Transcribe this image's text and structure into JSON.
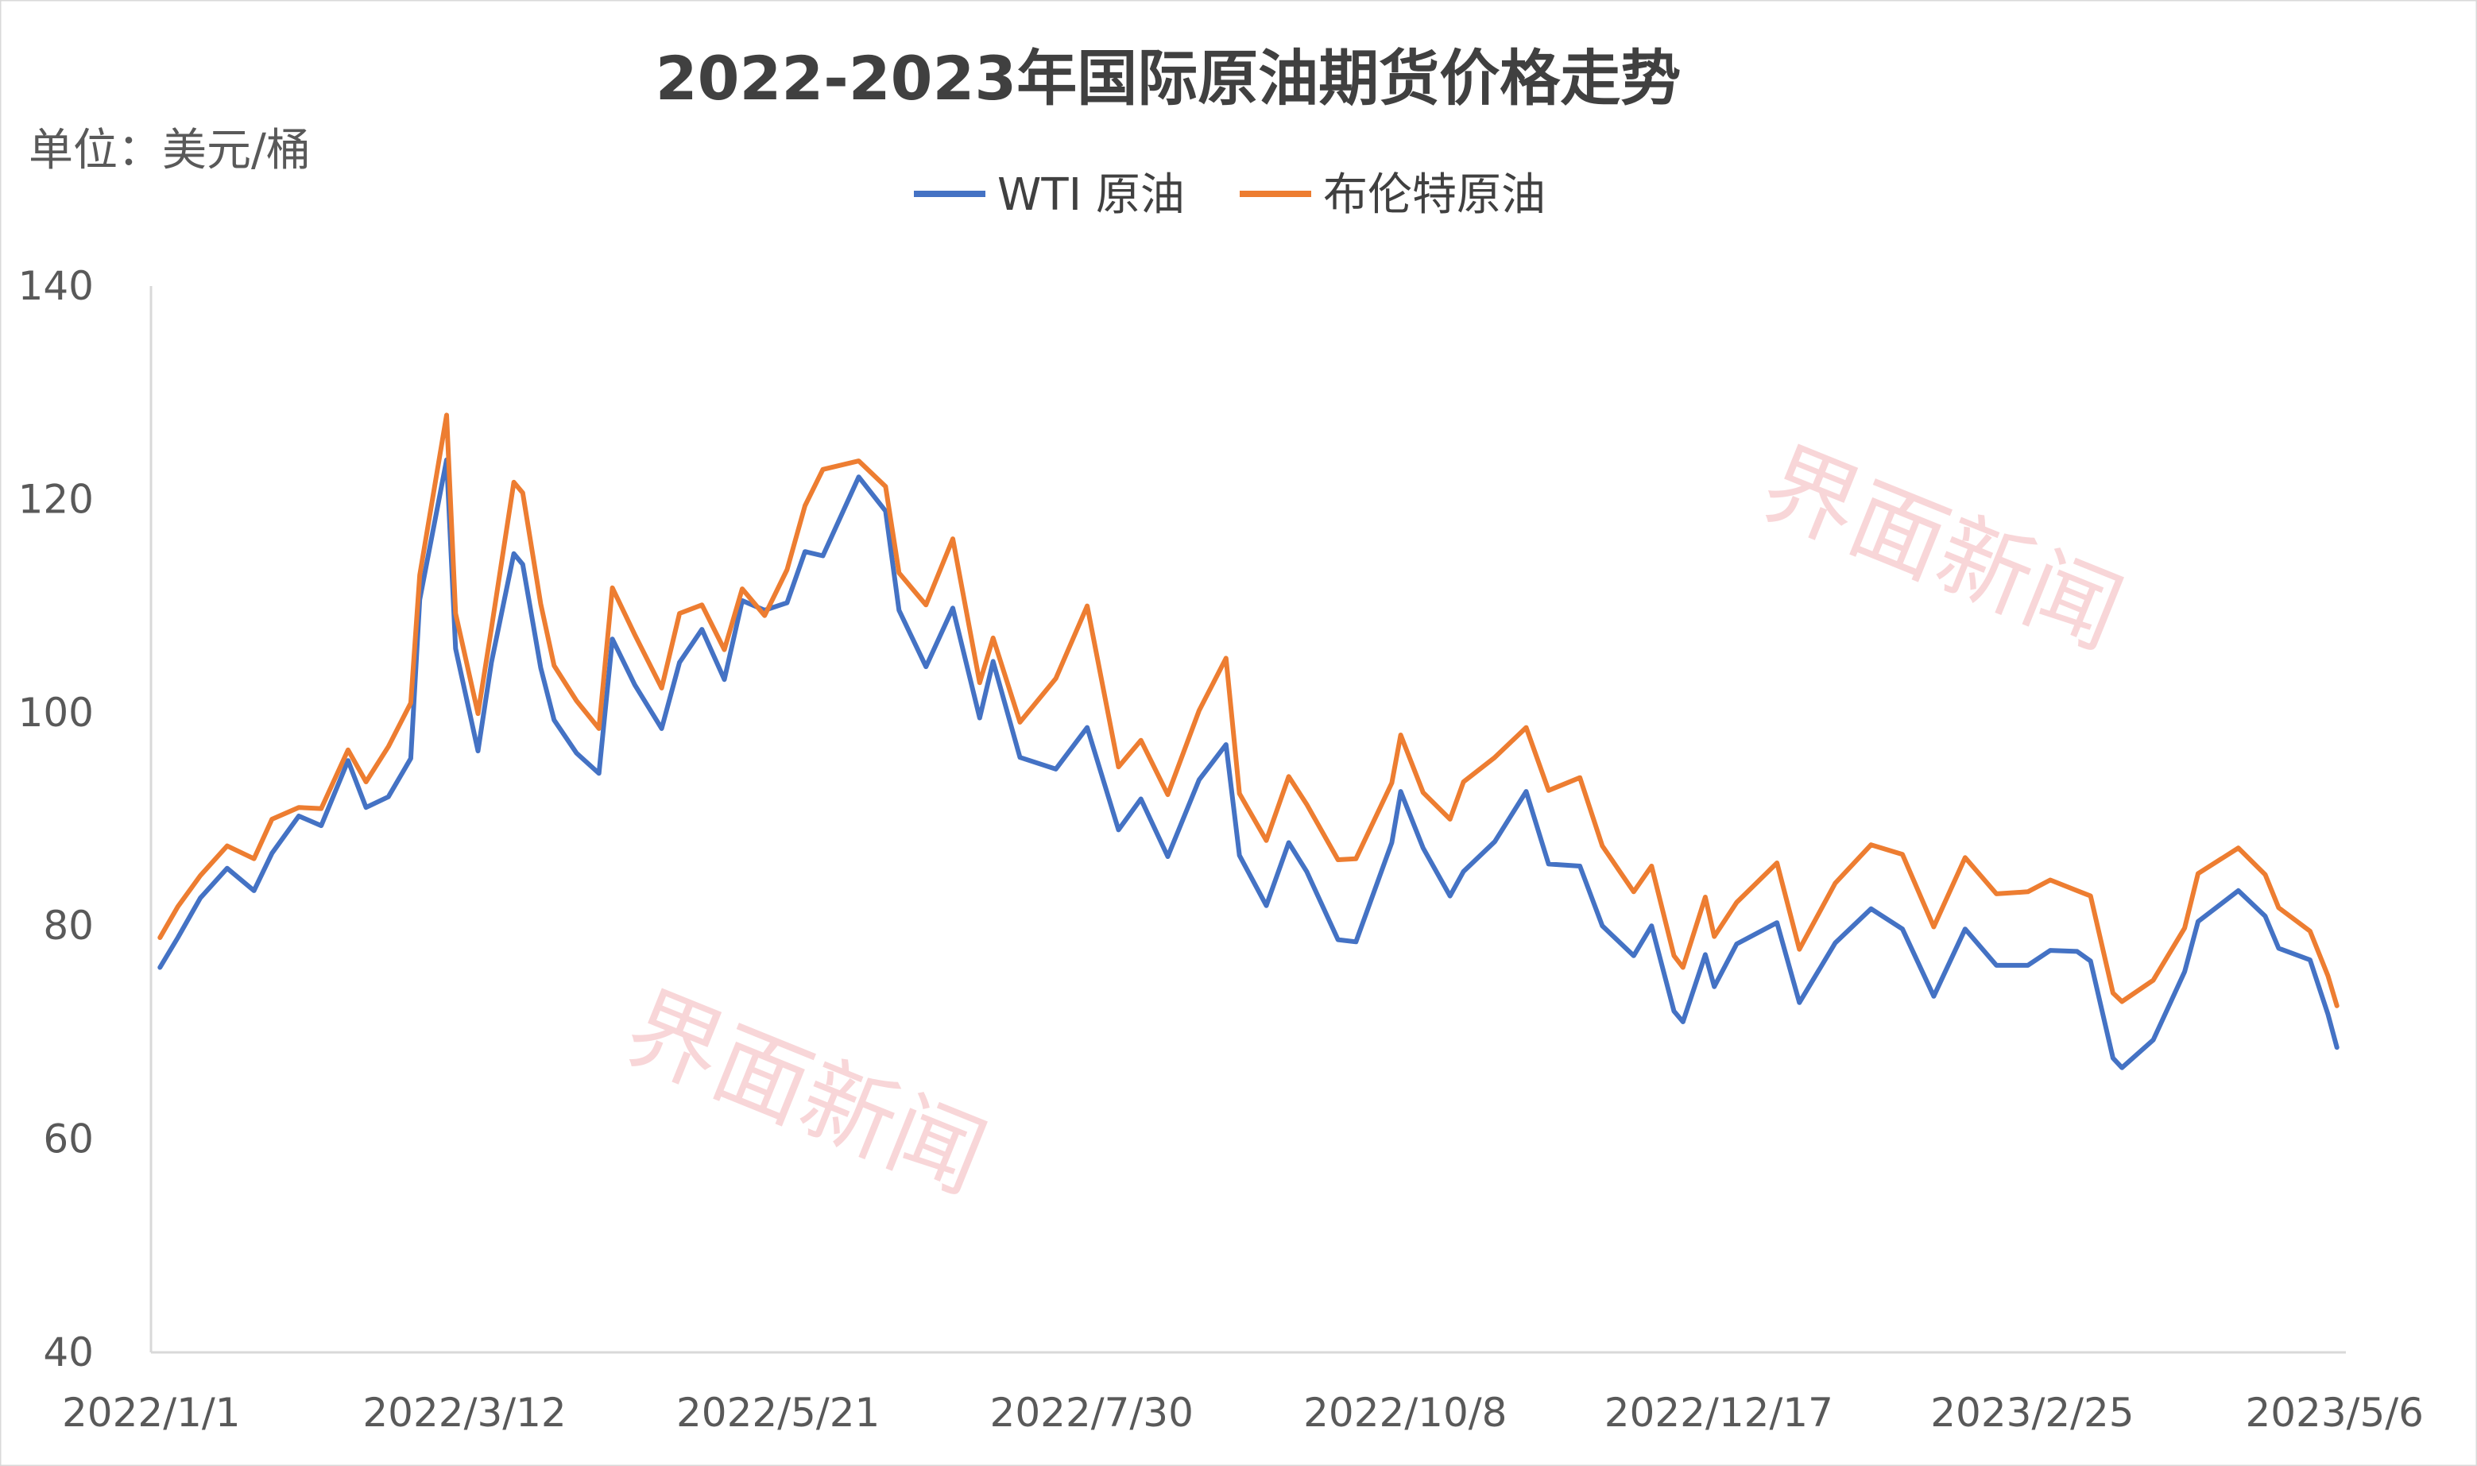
{
  "chart_data": {
    "type": "line",
    "title": "2022-2023年国际原油期货价格走势",
    "unit_label": "单位：美元/桶",
    "ylim": [
      40,
      140
    ],
    "yticks": [
      "40",
      "60",
      "80",
      "100",
      "120",
      "140"
    ],
    "xticks": [
      "2022/1/1",
      "2022/3/12",
      "2022/5/21",
      "2022/7/30",
      "2022/10/8",
      "2022/12/17",
      "2023/2/25",
      "2023/5/6"
    ],
    "x_range": [
      "2022/1/1",
      "2023/5/6"
    ],
    "grid": false,
    "legend_position": "top",
    "watermarks": [
      "界面新闻",
      "界面新闻"
    ],
    "series": [
      {
        "name": "WTI 原油",
        "color": "#4472C4",
        "points": [
          [
            "2022/1/3",
            76.1
          ],
          [
            "2022/1/7",
            78.9
          ],
          [
            "2022/1/12",
            82.6
          ],
          [
            "2022/1/18",
            85.4
          ],
          [
            "2022/1/24",
            83.3
          ],
          [
            "2022/1/28",
            86.8
          ],
          [
            "2022/2/3",
            90.3
          ],
          [
            "2022/2/8",
            89.4
          ],
          [
            "2022/2/14",
            95.5
          ],
          [
            "2022/2/18",
            91.1
          ],
          [
            "2022/2/23",
            92.1
          ],
          [
            "2022/2/28",
            95.7
          ],
          [
            "2022/3/2",
            110.6
          ],
          [
            "2022/3/8",
            123.7
          ],
          [
            "2022/3/10",
            106.0
          ],
          [
            "2022/3/15",
            96.4
          ],
          [
            "2022/3/18",
            104.7
          ],
          [
            "2022/3/23",
            114.9
          ],
          [
            "2022/3/25",
            113.9
          ],
          [
            "2022/3/29",
            104.2
          ],
          [
            "2022/4/1",
            99.3
          ],
          [
            "2022/4/6",
            96.2
          ],
          [
            "2022/4/11",
            94.3
          ],
          [
            "2022/4/14",
            106.9
          ],
          [
            "2022/4/19",
            102.6
          ],
          [
            "2022/4/25",
            98.5
          ],
          [
            "2022/4/29",
            104.7
          ],
          [
            "2022/5/4",
            107.8
          ],
          [
            "2022/5/9",
            103.1
          ],
          [
            "2022/5/13",
            110.5
          ],
          [
            "2022/5/18",
            109.6
          ],
          [
            "2022/5/23",
            110.3
          ],
          [
            "2022/5/27",
            115.1
          ],
          [
            "2022/5/31",
            114.7
          ],
          [
            "2022/6/8",
            122.1
          ],
          [
            "2022/6/14",
            118.9
          ],
          [
            "2022/6/17",
            109.6
          ],
          [
            "2022/6/23",
            104.3
          ],
          [
            "2022/6/29",
            109.8
          ],
          [
            "2022/7/5",
            99.5
          ],
          [
            "2022/7/8",
            104.8
          ],
          [
            "2022/7/14",
            95.8
          ],
          [
            "2022/7/22",
            94.7
          ],
          [
            "2022/7/29",
            98.6
          ],
          [
            "2022/8/5",
            89.0
          ],
          [
            "2022/8/10",
            91.9
          ],
          [
            "2022/8/16",
            86.5
          ],
          [
            "2022/8/23",
            93.7
          ],
          [
            "2022/8/29",
            97.0
          ],
          [
            "2022/9/1",
            86.6
          ],
          [
            "2022/9/7",
            81.9
          ],
          [
            "2022/9/12",
            87.8
          ],
          [
            "2022/9/16",
            85.1
          ],
          [
            "2022/9/23",
            78.7
          ],
          [
            "2022/9/27",
            78.5
          ],
          [
            "2022/10/5",
            87.8
          ],
          [
            "2022/10/7",
            92.6
          ],
          [
            "2022/10/12",
            87.3
          ],
          [
            "2022/10/18",
            82.8
          ],
          [
            "2022/10/21",
            85.1
          ],
          [
            "2022/10/28",
            87.9
          ],
          [
            "2022/11/4",
            92.6
          ],
          [
            "2022/11/9",
            85.8
          ],
          [
            "2022/11/16",
            85.6
          ],
          [
            "2022/11/21",
            80.0
          ],
          [
            "2022/11/28",
            77.2
          ],
          [
            "2022/12/2",
            80.0
          ],
          [
            "2022/12/7",
            72.0
          ],
          [
            "2022/12/9",
            71.0
          ],
          [
            "2022/12/14",
            77.3
          ],
          [
            "2022/12/16",
            74.3
          ],
          [
            "2022/12/21",
            78.3
          ],
          [
            "2022/12/30",
            80.3
          ],
          [
            "2023/1/4",
            72.8
          ],
          [
            "2023/1/12",
            78.4
          ],
          [
            "2023/1/20",
            81.6
          ],
          [
            "2023/1/27",
            79.7
          ],
          [
            "2023/2/3",
            73.4
          ],
          [
            "2023/2/10",
            79.7
          ],
          [
            "2023/2/17",
            76.3
          ],
          [
            "2023/2/24",
            76.3
          ],
          [
            "2023/3/1",
            77.7
          ],
          [
            "2023/3/7",
            77.6
          ],
          [
            "2023/3/10",
            76.7
          ],
          [
            "2023/3/15",
            67.6
          ],
          [
            "2023/3/17",
            66.7
          ],
          [
            "2023/3/24",
            69.3
          ],
          [
            "2023/3/31",
            75.7
          ],
          [
            "2023/4/3",
            80.4
          ],
          [
            "2023/4/12",
            83.3
          ],
          [
            "2023/4/18",
            80.9
          ],
          [
            "2023/4/21",
            77.9
          ],
          [
            "2023/4/28",
            76.8
          ],
          [
            "2023/5/2",
            71.7
          ],
          [
            "2023/5/4",
            68.6
          ]
        ]
      },
      {
        "name": "布伦特原油",
        "color": "#ED7D31",
        "points": [
          [
            "2022/1/3",
            78.9
          ],
          [
            "2022/1/7",
            81.8
          ],
          [
            "2022/1/12",
            84.7
          ],
          [
            "2022/1/18",
            87.5
          ],
          [
            "2022/1/24",
            86.3
          ],
          [
            "2022/1/28",
            90.0
          ],
          [
            "2022/2/3",
            91.1
          ],
          [
            "2022/2/8",
            91.0
          ],
          [
            "2022/2/14",
            96.5
          ],
          [
            "2022/2/18",
            93.5
          ],
          [
            "2022/2/23",
            96.8
          ],
          [
            "2022/2/28",
            100.9
          ],
          [
            "2022/3/2",
            112.9
          ],
          [
            "2022/3/8",
            127.9
          ],
          [
            "2022/3/10",
            109.3
          ],
          [
            "2022/3/15",
            99.9
          ],
          [
            "2022/3/18",
            107.9
          ],
          [
            "2022/3/23",
            121.6
          ],
          [
            "2022/3/25",
            120.6
          ],
          [
            "2022/3/29",
            110.2
          ],
          [
            "2022/4/1",
            104.4
          ],
          [
            "2022/4/6",
            101.1
          ],
          [
            "2022/4/11",
            98.5
          ],
          [
            "2022/4/14",
            111.7
          ],
          [
            "2022/4/19",
            107.3
          ],
          [
            "2022/4/25",
            102.3
          ],
          [
            "2022/4/29",
            109.3
          ],
          [
            "2022/5/4",
            110.1
          ],
          [
            "2022/5/9",
            105.9
          ],
          [
            "2022/5/13",
            111.6
          ],
          [
            "2022/5/18",
            109.1
          ],
          [
            "2022/5/23",
            113.4
          ],
          [
            "2022/5/27",
            119.4
          ],
          [
            "2022/5/31",
            122.8
          ],
          [
            "2022/6/8",
            123.6
          ],
          [
            "2022/6/14",
            121.2
          ],
          [
            "2022/6/17",
            113.1
          ],
          [
            "2022/6/23",
            110.1
          ],
          [
            "2022/6/29",
            116.3
          ],
          [
            "2022/7/5",
            102.8
          ],
          [
            "2022/7/8",
            107.0
          ],
          [
            "2022/7/14",
            99.1
          ],
          [
            "2022/7/22",
            103.2
          ],
          [
            "2022/7/29",
            110.0
          ],
          [
            "2022/8/5",
            94.9
          ],
          [
            "2022/8/10",
            97.4
          ],
          [
            "2022/8/16",
            92.3
          ],
          [
            "2022/8/23",
            100.2
          ],
          [
            "2022/8/29",
            105.1
          ],
          [
            "2022/9/1",
            92.4
          ],
          [
            "2022/9/7",
            88.0
          ],
          [
            "2022/9/12",
            94.0
          ],
          [
            "2022/9/16",
            91.4
          ],
          [
            "2022/9/23",
            86.2
          ],
          [
            "2022/9/27",
            86.3
          ],
          [
            "2022/10/5",
            93.4
          ],
          [
            "2022/10/7",
            97.9
          ],
          [
            "2022/10/12",
            92.5
          ],
          [
            "2022/10/18",
            90.0
          ],
          [
            "2022/10/21",
            93.5
          ],
          [
            "2022/10/28",
            95.8
          ],
          [
            "2022/11/4",
            98.6
          ],
          [
            "2022/11/9",
            92.7
          ],
          [
            "2022/11/16",
            93.9
          ],
          [
            "2022/11/21",
            87.5
          ],
          [
            "2022/11/28",
            83.2
          ],
          [
            "2022/12/2",
            85.6
          ],
          [
            "2022/12/7",
            77.2
          ],
          [
            "2022/12/9",
            76.1
          ],
          [
            "2022/12/14",
            82.7
          ],
          [
            "2022/12/16",
            79.0
          ],
          [
            "2022/12/21",
            82.2
          ],
          [
            "2022/12/30",
            85.9
          ],
          [
            "2023/1/4",
            77.8
          ],
          [
            "2023/1/12",
            84.0
          ],
          [
            "2023/1/20",
            87.6
          ],
          [
            "2023/1/27",
            86.7
          ],
          [
            "2023/2/3",
            79.9
          ],
          [
            "2023/2/10",
            86.4
          ],
          [
            "2023/2/17",
            83.0
          ],
          [
            "2023/2/24",
            83.2
          ],
          [
            "2023/3/1",
            84.3
          ],
          [
            "2023/3/7",
            83.3
          ],
          [
            "2023/3/10",
            82.8
          ],
          [
            "2023/3/15",
            73.7
          ],
          [
            "2023/3/17",
            72.9
          ],
          [
            "2023/3/24",
            74.9
          ],
          [
            "2023/3/31",
            79.8
          ],
          [
            "2023/4/3",
            84.9
          ],
          [
            "2023/4/12",
            87.3
          ],
          [
            "2023/4/18",
            84.8
          ],
          [
            "2023/4/21",
            81.7
          ],
          [
            "2023/4/28",
            79.5
          ],
          [
            "2023/5/2",
            75.3
          ],
          [
            "2023/5/4",
            72.5
          ]
        ]
      }
    ]
  }
}
